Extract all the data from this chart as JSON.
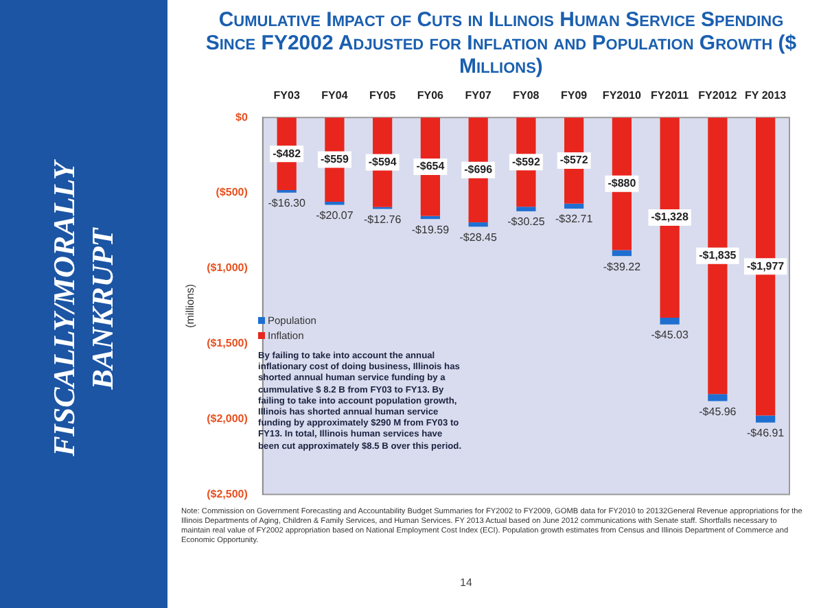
{
  "chart_data": {
    "type": "bar",
    "title": "Cumulative Impact of Cuts in Illinois Human Service Spending Since FY2002 Adjusted for Inflation and Population Growth ($ Millions)",
    "ylabel": "(millions)",
    "categories": [
      "FY03",
      "FY04",
      "FY05",
      "FY06",
      "FY07",
      "FY08",
      "FY09",
      "FY2010",
      "FY2011",
      "FY2012",
      "FY 2013"
    ],
    "stacked": true,
    "series": [
      {
        "name": "Inflation",
        "color": "#e8261e",
        "values": [
          -482,
          -559,
          -594,
          -654,
          -696,
          -592,
          -572,
          -880,
          -1328,
          -1835,
          -1977
        ],
        "value_labels": [
          "-$482",
          "-$559",
          "-$594",
          "-$654",
          "-$696",
          "-$592",
          "-$572",
          "-$880",
          "-$1,328",
          "-$1,835",
          "-$1,977"
        ]
      },
      {
        "name": "Population",
        "color": "#1f6fd1",
        "values": [
          -16.3,
          -20.07,
          -12.76,
          -19.59,
          -28.45,
          -30.25,
          -32.71,
          -39.22,
          -45.03,
          -45.96,
          -46.91
        ],
        "value_labels": [
          "-$16.30",
          "-$20.07",
          "-$12.76",
          "-$19.59",
          "-$28.45",
          "-$30.25",
          "-$32.71",
          "-$39.22",
          "-$45.03",
          "-$45.96",
          "-$46.91"
        ]
      }
    ],
    "ylim": [
      -2500,
      0
    ],
    "yticks": [
      {
        "value": 0,
        "label": "$0"
      },
      {
        "value": -500,
        "label": "($500)"
      },
      {
        "value": -1000,
        "label": "($1,000)"
      },
      {
        "value": -1500,
        "label": "($1,500)"
      },
      {
        "value": -2000,
        "label": "($2,000)"
      },
      {
        "value": -2500,
        "label": "($2,500)"
      }
    ],
    "legend": "left",
    "grid": false,
    "annotations": [
      "FISCALLY/MORALLY BANKRUPT",
      "By failing to take into account the annual inflationary cost of doing business, Illinois has shorted annual human service funding by a cummulative $ 8.2 B from FY03 to FY13.  By failing to take into account population growth, Illinois has shorted annual human service funding by approximately $290 M from FY03 to FY13. In total, Illinois human services have been cut approximately $8.5 B over this period.",
      "Note: Commission on Government Forecasting and Accountability Budget Summaries for FY2002 to FY2009, GOMB data for FY2010 to 20132General Revenue appropriations for the Illinois Departments of Aging, Children & Family Services, and Human Services. FY 2013 Actual based on June 2012 communications with Senate staff. Shortfalls necessary to maintain real value of FY2002 appropriation based on National Employment Cost Index (ECI). Population growth estimates from Census and Illinois Department of Commerce and Economic Opportunity.",
      "14"
    ]
  }
}
